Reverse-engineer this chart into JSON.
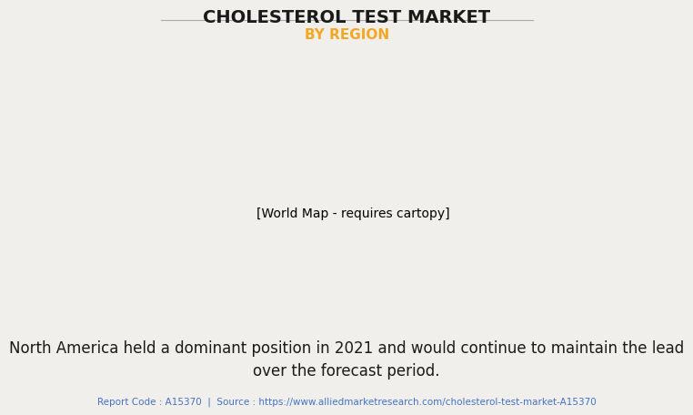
{
  "title": "CHOLESTEROL TEST MARKET",
  "subtitle": "BY REGION",
  "subtitle_color": "#F5A623",
  "body_text": "North America held a dominant position in 2021 and would continue to maintain the lead\nover the forecast period.",
  "footer_text": "Report Code : A15370  |  Source : https://www.alliedmarketresearch.com/cholesterol-test-market-A15370",
  "background_color": "#F0EFEB",
  "map_color_default": "#8FBC8F",
  "map_color_highlight": "#FFFFFF",
  "title_fontsize": 14,
  "subtitle_fontsize": 11,
  "body_fontsize": 12,
  "footer_fontsize": 7.5
}
